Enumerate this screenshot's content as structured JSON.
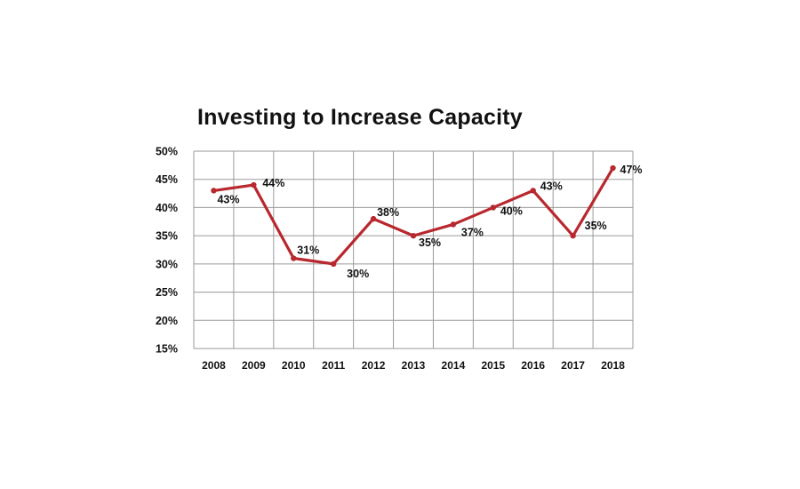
{
  "chart_data": {
    "type": "line",
    "title": "Investing to Increase Capacity",
    "xlabel": "",
    "ylabel": "",
    "categories": [
      "2008",
      "2009",
      "2010",
      "2011",
      "2012",
      "2013",
      "2014",
      "2015",
      "2016",
      "2017",
      "2018"
    ],
    "series": [
      {
        "values": [
          43,
          44,
          31,
          30,
          38,
          35,
          37,
          40,
          43,
          35,
          47
        ],
        "labels": [
          "43%",
          "44%",
          "31%",
          "30%",
          "38%",
          "35%",
          "37%",
          "40%",
          "43%",
          "35%",
          "47%"
        ],
        "color": "#b8282e"
      }
    ],
    "ylim": [
      15,
      50
    ],
    "yticks": [
      15,
      20,
      25,
      30,
      35,
      40,
      45,
      50
    ],
    "ytick_labels": [
      "15%",
      "20%",
      "25%",
      "30%",
      "35%",
      "40%",
      "45%",
      "50%"
    ],
    "grid": true,
    "legend": "none",
    "colors": {
      "line": "#b8282e",
      "grid": "#9a9a9a",
      "text": "#111111"
    }
  }
}
